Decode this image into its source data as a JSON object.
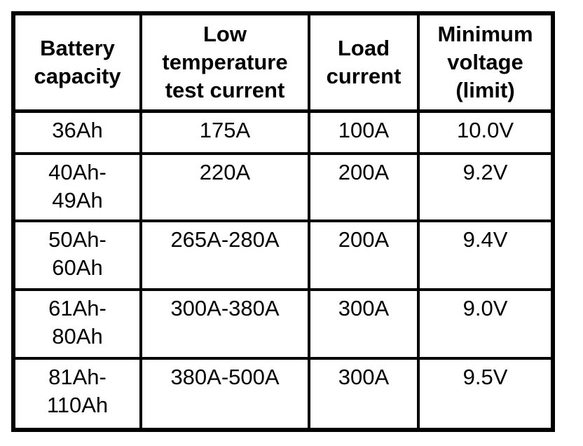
{
  "colors": {
    "background": "#ffffff",
    "border": "#000000",
    "text": "#000000"
  },
  "chart_data": {
    "type": "table",
    "columns": [
      "Battery capacity",
      "Low temperature test current",
      "Load current",
      "Minimum voltage (limit)"
    ],
    "rows": [
      [
        "36Ah",
        "175A",
        "100A",
        "10.0V"
      ],
      [
        "40Ah-49Ah",
        "220A",
        "200A",
        "9.2V"
      ],
      [
        "50Ah-60Ah",
        "265A-280A",
        "200A",
        "9.4V"
      ],
      [
        "61Ah-80Ah",
        "300A-380A",
        "300A",
        "9.0V"
      ],
      [
        "81Ah-110Ah",
        "380A-500A",
        "300A",
        "9.5V"
      ]
    ]
  },
  "display": {
    "headers": [
      "Battery\ncapacity",
      "Low\ntemperature\ntest current",
      "Load\ncurrent",
      "Minimum\nvoltage\n(limit)"
    ],
    "rows": [
      [
        "36Ah",
        "175A",
        "100A",
        "10.0V"
      ],
      [
        "40Ah-\n49Ah",
        "220A",
        "200A",
        "9.2V"
      ],
      [
        "50Ah-\n60Ah",
        "265A-280A",
        "200A",
        "9.4V"
      ],
      [
        "61Ah-\n80Ah",
        "300A-380A",
        "300A",
        "9.0V"
      ],
      [
        "81Ah-\n110Ah",
        "380A-500A",
        "300A",
        "9.5V"
      ]
    ]
  }
}
